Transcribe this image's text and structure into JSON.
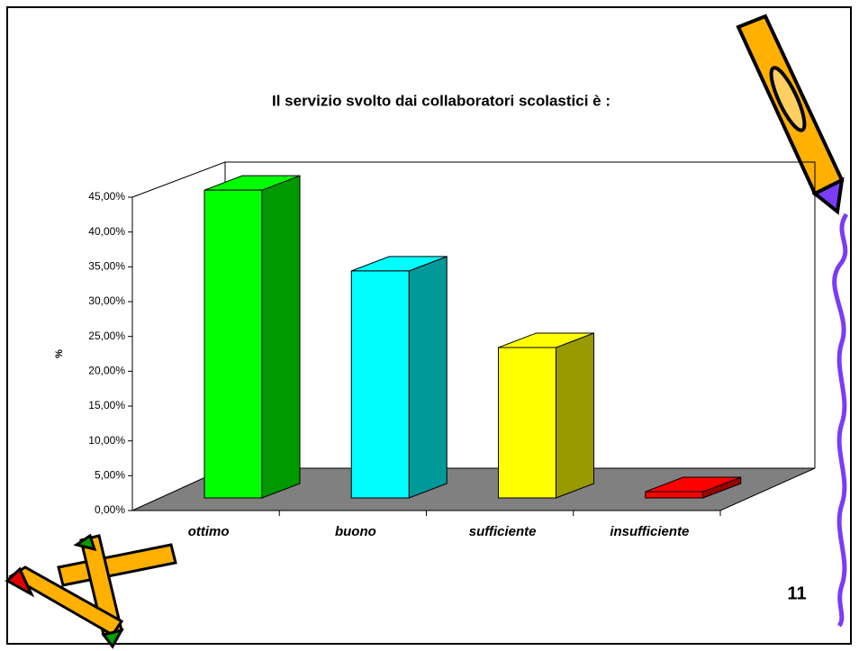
{
  "page_number": "11",
  "chart_data": {
    "type": "bar3d",
    "title": "Il servizio svolto dai collaboratori scolastici  è :",
    "y_label": "%",
    "categories": [
      "ottimo",
      "buono",
      "sufficiente",
      "insufficiente"
    ],
    "values": [
      44.2,
      32.6,
      21.6,
      0.9
    ],
    "colors": [
      "#00ff00",
      "#00ffff",
      "#ffff00",
      "#ff0000"
    ],
    "ylim": [
      0,
      45
    ],
    "yticks": [
      {
        "value": 0,
        "label": "0,00%"
      },
      {
        "value": 5,
        "label": "5,00%"
      },
      {
        "value": 10,
        "label": "10,00%"
      },
      {
        "value": 15,
        "label": "15,00%"
      },
      {
        "value": 20,
        "label": "20,00%"
      },
      {
        "value": 25,
        "label": "25,00%"
      },
      {
        "value": 30,
        "label": "30,00%"
      },
      {
        "value": 35,
        "label": "35,00%"
      },
      {
        "value": 40,
        "label": "40,00%"
      },
      {
        "value": 45,
        "label": "45,00%"
      }
    ]
  }
}
